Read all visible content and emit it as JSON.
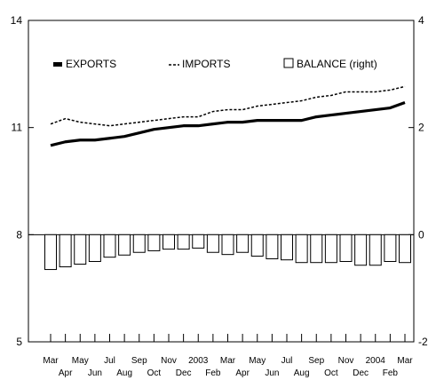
{
  "chart_data": {
    "type": "line+bar",
    "title": "",
    "categories": [
      "Mar",
      "Apr",
      "May",
      "Jun",
      "Jul",
      "Aug",
      "Sep",
      "Oct",
      "Nov",
      "Dec",
      "2003",
      "Feb",
      "Mar",
      "Apr",
      "May",
      "Jun",
      "Jul",
      "Aug",
      "Sep",
      "Oct",
      "Nov",
      "Dec",
      "2004",
      "Feb",
      "Mar"
    ],
    "left_axis": {
      "ylim": [
        5,
        14
      ],
      "ticks": [
        "5",
        "8",
        "11",
        "14"
      ]
    },
    "right_axis": {
      "ylim": [
        -2,
        4
      ],
      "ticks": [
        "-2",
        "0",
        "2",
        "4"
      ]
    },
    "grid": false,
    "legend_position": "top",
    "series": [
      {
        "name": "EXPORTS",
        "type": "line",
        "axis": "left",
        "style": "solid-thick",
        "color": "#000000",
        "values": [
          10.5,
          10.6,
          10.65,
          10.65,
          10.7,
          10.75,
          10.85,
          10.95,
          11.0,
          11.05,
          11.05,
          11.1,
          11.15,
          11.15,
          11.2,
          11.2,
          11.2,
          11.2,
          11.3,
          11.35,
          11.4,
          11.45,
          11.5,
          11.55,
          11.7
        ]
      },
      {
        "name": "IMPORTS",
        "type": "line",
        "axis": "left",
        "style": "dashed",
        "color": "#000000",
        "values": [
          11.1,
          11.25,
          11.15,
          11.1,
          11.05,
          11.1,
          11.15,
          11.2,
          11.25,
          11.3,
          11.3,
          11.45,
          11.5,
          11.5,
          11.6,
          11.65,
          11.7,
          11.75,
          11.85,
          11.9,
          12.0,
          12.0,
          12.0,
          12.05,
          12.15
        ]
      },
      {
        "name": "BALANCE (right)",
        "type": "bar",
        "axis": "right",
        "style": "hollow",
        "color": "#000000",
        "values": [
          -0.65,
          -0.6,
          -0.55,
          -0.5,
          -0.42,
          -0.38,
          -0.33,
          -0.3,
          -0.27,
          -0.27,
          -0.25,
          -0.33,
          -0.37,
          -0.33,
          -0.4,
          -0.45,
          -0.47,
          -0.52,
          -0.52,
          -0.52,
          -0.5,
          -0.57,
          -0.57,
          -0.5,
          -0.52
        ]
      }
    ]
  }
}
